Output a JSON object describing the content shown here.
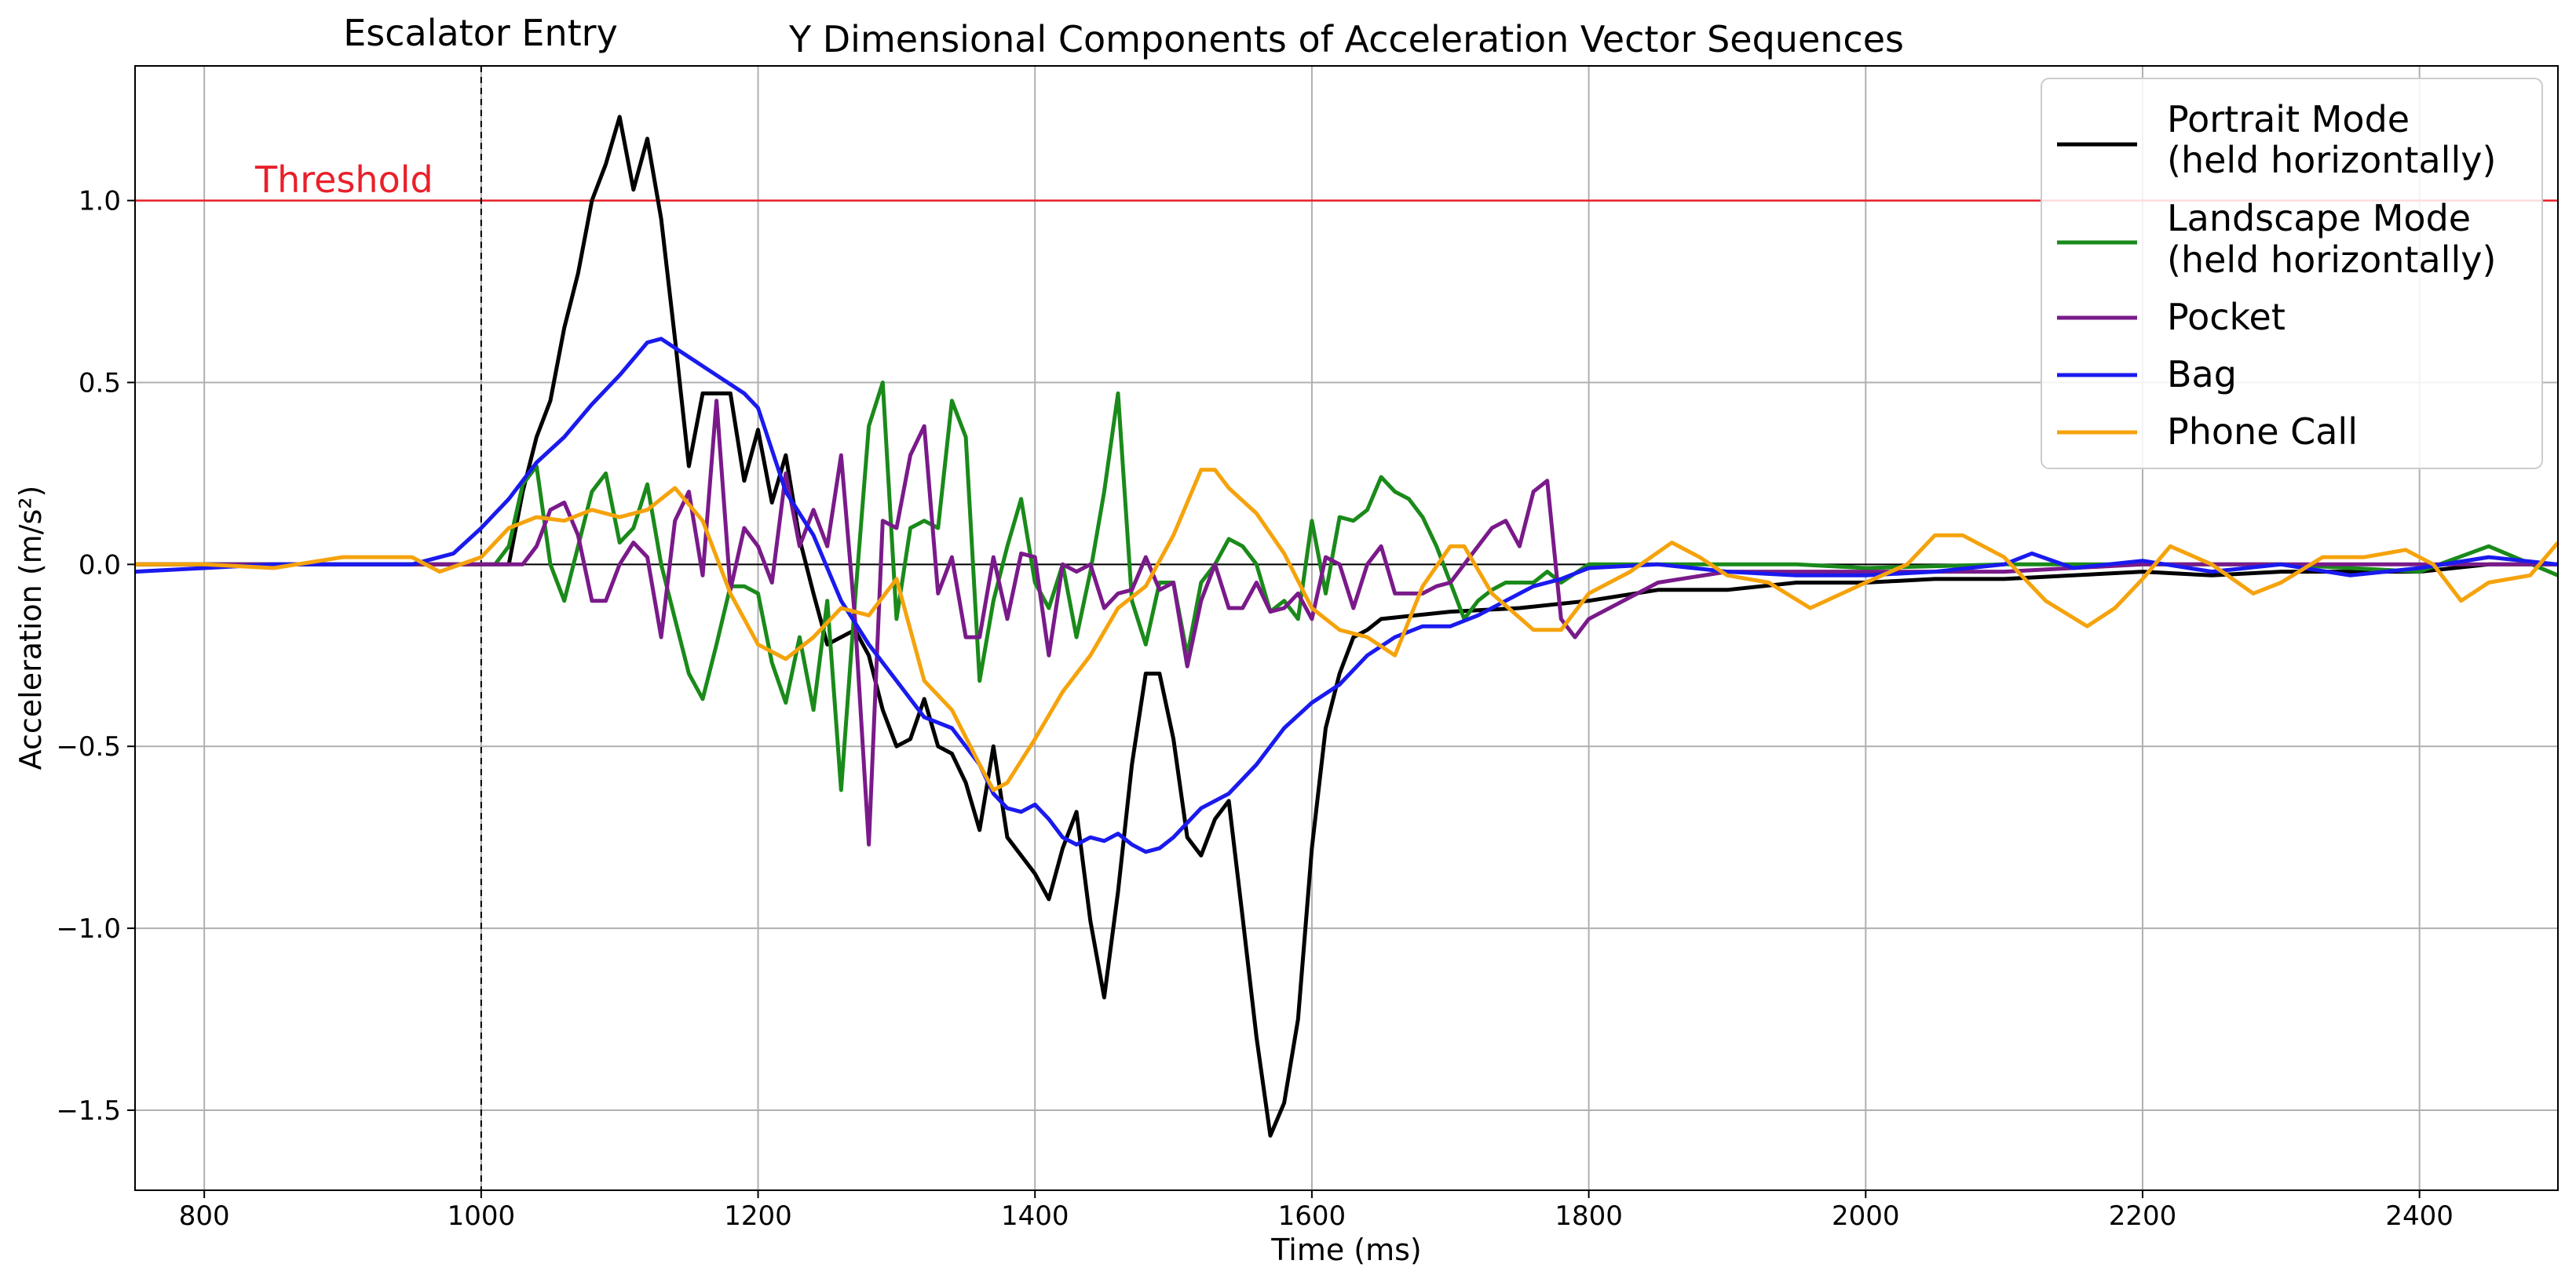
{
  "chart_data": {
    "type": "line",
    "title": "Y Dimensional Components of Acceleration Vector Sequences",
    "xlabel": "Time (ms)",
    "ylabel": "Acceleration (m/s²)",
    "xlim": [
      750,
      2500
    ],
    "ylim": [
      -1.72,
      1.37
    ],
    "grid": true,
    "xticks": [
      800,
      1000,
      1200,
      1400,
      1600,
      1800,
      2000,
      2200,
      2400
    ],
    "yticks": [
      -1.5,
      -1.0,
      -0.5,
      0.0,
      0.5,
      1.0
    ],
    "ytick_labels": [
      "−1.5",
      "−1.0",
      "−0.5",
      "0.0",
      "0.5",
      "1.0"
    ],
    "legend_position": "top-right",
    "threshold": {
      "label": "Threshold",
      "y": 1.0,
      "color": "#e8202a"
    },
    "vline": {
      "label": "Escalator Entry",
      "x": 1000
    },
    "series": [
      {
        "name": "Portrait Mode\n(held horizontally)",
        "color": "#000000",
        "x": [
          750,
          800,
          850,
          900,
          950,
          1000,
          1010,
          1020,
          1030,
          1040,
          1050,
          1060,
          1070,
          1080,
          1090,
          1100,
          1110,
          1120,
          1130,
          1140,
          1150,
          1160,
          1170,
          1180,
          1190,
          1200,
          1210,
          1220,
          1230,
          1240,
          1250,
          1260,
          1270,
          1280,
          1290,
          1300,
          1310,
          1320,
          1330,
          1340,
          1350,
          1360,
          1370,
          1380,
          1390,
          1400,
          1410,
          1420,
          1430,
          1440,
          1450,
          1460,
          1470,
          1480,
          1490,
          1500,
          1510,
          1520,
          1530,
          1540,
          1550,
          1560,
          1570,
          1580,
          1590,
          1600,
          1610,
          1620,
          1630,
          1640,
          1650,
          1700,
          1750,
          1800,
          1850,
          1900,
          1950,
          2000,
          2050,
          2100,
          2150,
          2200,
          2250,
          2300,
          2350,
          2400,
          2450,
          2500
        ],
        "y": [
          0,
          0,
          0,
          0,
          0,
          0,
          0,
          0,
          0.2,
          0.35,
          0.45,
          0.65,
          0.8,
          1.0,
          1.1,
          1.23,
          1.03,
          1.17,
          0.95,
          0.62,
          0.27,
          0.47,
          0.47,
          0.47,
          0.23,
          0.37,
          0.17,
          0.3,
          0.07,
          -0.08,
          -0.22,
          -0.2,
          -0.18,
          -0.25,
          -0.4,
          -0.5,
          -0.48,
          -0.37,
          -0.5,
          -0.52,
          -0.6,
          -0.73,
          -0.5,
          -0.75,
          -0.8,
          -0.85,
          -0.92,
          -0.78,
          -0.68,
          -0.98,
          -1.19,
          -0.9,
          -0.55,
          -0.3,
          -0.3,
          -0.48,
          -0.75,
          -0.8,
          -0.7,
          -0.65,
          -0.97,
          -1.3,
          -1.57,
          -1.48,
          -1.25,
          -0.78,
          -0.45,
          -0.3,
          -0.2,
          -0.18,
          -0.15,
          -0.13,
          -0.12,
          -0.1,
          -0.07,
          -0.07,
          -0.05,
          -0.05,
          -0.04,
          -0.04,
          -0.03,
          -0.02,
          -0.03,
          -0.02,
          -0.02,
          -0.02,
          0,
          0
        ]
      },
      {
        "name": "Landscape Mode\n(held horizontally)",
        "color": "#1a8a1a",
        "x": [
          750,
          800,
          850,
          900,
          950,
          1000,
          1010,
          1020,
          1030,
          1040,
          1050,
          1060,
          1070,
          1080,
          1090,
          1100,
          1110,
          1120,
          1130,
          1140,
          1150,
          1160,
          1170,
          1180,
          1190,
          1200,
          1210,
          1220,
          1230,
          1240,
          1250,
          1260,
          1270,
          1280,
          1290,
          1300,
          1310,
          1320,
          1330,
          1340,
          1350,
          1360,
          1370,
          1380,
          1390,
          1400,
          1410,
          1420,
          1430,
          1440,
          1450,
          1460,
          1470,
          1480,
          1490,
          1500,
          1510,
          1520,
          1530,
          1540,
          1550,
          1560,
          1570,
          1580,
          1590,
          1600,
          1610,
          1620,
          1630,
          1640,
          1650,
          1660,
          1670,
          1680,
          1690,
          1700,
          1710,
          1720,
          1730,
          1740,
          1750,
          1760,
          1770,
          1780,
          1800,
          1850,
          1900,
          1950,
          2000,
          2100,
          2200,
          2300,
          2400,
          2450,
          2500
        ],
        "y": [
          0,
          0,
          0,
          0,
          0,
          0,
          0,
          0.05,
          0.22,
          0.27,
          0.0,
          -0.1,
          0.05,
          0.2,
          0.25,
          0.06,
          0.1,
          0.22,
          0.0,
          -0.15,
          -0.3,
          -0.37,
          -0.22,
          -0.06,
          -0.06,
          -0.08,
          -0.27,
          -0.38,
          -0.2,
          -0.4,
          -0.1,
          -0.62,
          -0.1,
          0.38,
          0.5,
          -0.15,
          0.1,
          0.12,
          0.1,
          0.45,
          0.35,
          -0.32,
          -0.1,
          0.05,
          0.18,
          -0.05,
          -0.12,
          0.0,
          -0.2,
          -0.02,
          0.2,
          0.47,
          -0.1,
          -0.22,
          -0.05,
          -0.05,
          -0.25,
          -0.05,
          0.0,
          0.07,
          0.05,
          0.0,
          -0.13,
          -0.1,
          -0.15,
          0.12,
          -0.08,
          0.13,
          0.12,
          0.15,
          0.24,
          0.2,
          0.18,
          0.13,
          0.05,
          -0.05,
          -0.15,
          -0.1,
          -0.07,
          -0.05,
          -0.05,
          -0.05,
          -0.02,
          -0.05,
          0,
          0,
          0,
          0,
          -0.01,
          0,
          0,
          0,
          -0.02,
          0.05,
          -0.03
        ]
      },
      {
        "name": "Pocket",
        "color": "#7a1a8a",
        "x": [
          750,
          800,
          900,
          1000,
          1010,
          1020,
          1030,
          1040,
          1050,
          1060,
          1070,
          1080,
          1090,
          1100,
          1110,
          1120,
          1130,
          1140,
          1150,
          1160,
          1170,
          1180,
          1190,
          1200,
          1210,
          1220,
          1230,
          1240,
          1250,
          1260,
          1270,
          1280,
          1290,
          1300,
          1310,
          1320,
          1330,
          1340,
          1350,
          1360,
          1370,
          1380,
          1390,
          1400,
          1410,
          1420,
          1430,
          1440,
          1450,
          1460,
          1470,
          1480,
          1490,
          1500,
          1510,
          1520,
          1530,
          1540,
          1550,
          1560,
          1570,
          1580,
          1590,
          1600,
          1610,
          1620,
          1630,
          1640,
          1650,
          1660,
          1670,
          1680,
          1690,
          1700,
          1710,
          1720,
          1730,
          1740,
          1750,
          1760,
          1770,
          1780,
          1790,
          1800,
          1850,
          1900,
          2000,
          2100,
          2200,
          2300,
          2400,
          2500
        ],
        "y": [
          0,
          0,
          0,
          0,
          0,
          0,
          0,
          0.05,
          0.15,
          0.17,
          0.08,
          -0.1,
          -0.1,
          0.0,
          0.06,
          0.02,
          -0.2,
          0.12,
          0.2,
          -0.03,
          0.45,
          -0.07,
          0.1,
          0.05,
          -0.05,
          0.25,
          0.05,
          0.15,
          0.05,
          0.3,
          -0.15,
          -0.77,
          0.12,
          0.1,
          0.3,
          0.38,
          -0.08,
          0.02,
          -0.2,
          -0.2,
          0.02,
          -0.15,
          0.03,
          0.02,
          -0.25,
          0.0,
          -0.02,
          0.0,
          -0.12,
          -0.08,
          -0.07,
          0.02,
          -0.07,
          -0.05,
          -0.28,
          -0.1,
          0.0,
          -0.12,
          -0.12,
          -0.05,
          -0.13,
          -0.12,
          -0.08,
          -0.15,
          0.02,
          0.0,
          -0.12,
          0.0,
          0.05,
          -0.08,
          -0.08,
          -0.08,
          -0.06,
          -0.05,
          0.0,
          0.05,
          0.1,
          0.12,
          0.05,
          0.2,
          0.23,
          -0.15,
          -0.2,
          -0.15,
          -0.05,
          -0.02,
          -0.02,
          -0.02,
          0,
          0,
          0,
          0
        ]
      },
      {
        "name": "Bag",
        "color": "#1a1aee",
        "x": [
          750,
          800,
          850,
          900,
          950,
          980,
          1000,
          1020,
          1040,
          1060,
          1080,
          1100,
          1120,
          1130,
          1150,
          1170,
          1190,
          1200,
          1220,
          1240,
          1260,
          1280,
          1300,
          1320,
          1340,
          1360,
          1370,
          1380,
          1390,
          1400,
          1410,
          1420,
          1430,
          1440,
          1450,
          1460,
          1470,
          1480,
          1490,
          1500,
          1520,
          1540,
          1560,
          1580,
          1600,
          1620,
          1640,
          1660,
          1680,
          1700,
          1720,
          1740,
          1760,
          1780,
          1800,
          1850,
          1900,
          1950,
          2000,
          2050,
          2100,
          2120,
          2150,
          2200,
          2250,
          2300,
          2350,
          2400,
          2450,
          2500
        ],
        "y": [
          -0.02,
          -0.01,
          0,
          0,
          0,
          0.03,
          0.1,
          0.18,
          0.28,
          0.35,
          0.44,
          0.52,
          0.61,
          0.62,
          0.57,
          0.52,
          0.47,
          0.43,
          0.2,
          0.08,
          -0.1,
          -0.22,
          -0.32,
          -0.42,
          -0.45,
          -0.55,
          -0.63,
          -0.67,
          -0.68,
          -0.66,
          -0.7,
          -0.75,
          -0.77,
          -0.75,
          -0.76,
          -0.74,
          -0.77,
          -0.79,
          -0.78,
          -0.75,
          -0.67,
          -0.63,
          -0.55,
          -0.45,
          -0.38,
          -0.33,
          -0.25,
          -0.2,
          -0.17,
          -0.17,
          -0.14,
          -0.1,
          -0.06,
          -0.04,
          -0.01,
          0.0,
          -0.02,
          -0.03,
          -0.03,
          -0.02,
          0.0,
          0.03,
          -0.01,
          0.01,
          -0.02,
          0.0,
          -0.03,
          -0.01,
          0.02,
          0.0
        ]
      },
      {
        "name": "Phone Call",
        "color": "#f5a30c",
        "x": [
          750,
          800,
          850,
          900,
          950,
          970,
          1000,
          1020,
          1040,
          1060,
          1080,
          1100,
          1120,
          1140,
          1160,
          1180,
          1200,
          1220,
          1240,
          1260,
          1280,
          1300,
          1320,
          1340,
          1360,
          1370,
          1380,
          1400,
          1420,
          1440,
          1460,
          1480,
          1500,
          1520,
          1530,
          1540,
          1560,
          1580,
          1600,
          1620,
          1640,
          1660,
          1680,
          1700,
          1710,
          1730,
          1760,
          1780,
          1800,
          1830,
          1860,
          1880,
          1900,
          1930,
          1960,
          2000,
          2030,
          2050,
          2070,
          2100,
          2130,
          2160,
          2180,
          2200,
          2220,
          2250,
          2280,
          2300,
          2330,
          2360,
          2390,
          2410,
          2430,
          2450,
          2480,
          2500
        ],
        "y": [
          0,
          0,
          -0.01,
          0.02,
          0.02,
          -0.02,
          0.02,
          0.1,
          0.13,
          0.12,
          0.15,
          0.13,
          0.15,
          0.21,
          0.12,
          -0.08,
          -0.22,
          -0.26,
          -0.2,
          -0.12,
          -0.14,
          -0.04,
          -0.32,
          -0.4,
          -0.55,
          -0.62,
          -0.6,
          -0.48,
          -0.35,
          -0.25,
          -0.12,
          -0.06,
          0.08,
          0.26,
          0.26,
          0.21,
          0.14,
          0.03,
          -0.12,
          -0.18,
          -0.2,
          -0.25,
          -0.06,
          0.05,
          0.05,
          -0.08,
          -0.18,
          -0.18,
          -0.08,
          -0.02,
          0.06,
          0.02,
          -0.03,
          -0.05,
          -0.12,
          -0.05,
          0.0,
          0.08,
          0.08,
          0.02,
          -0.1,
          -0.17,
          -0.12,
          -0.04,
          0.05,
          0.0,
          -0.08,
          -0.05,
          0.02,
          0.02,
          0.04,
          0.0,
          -0.1,
          -0.05,
          -0.03,
          0.06
        ]
      }
    ]
  }
}
